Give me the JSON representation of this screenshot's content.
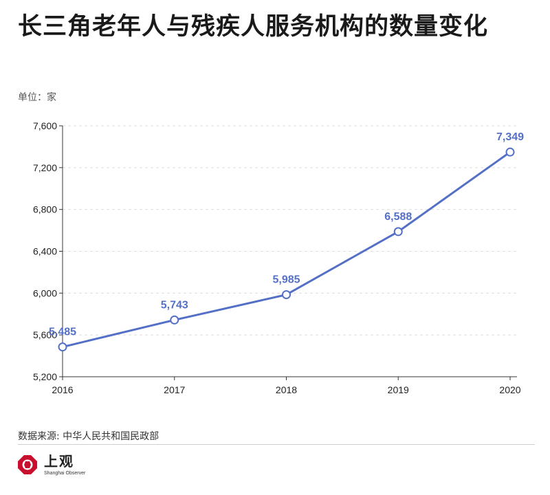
{
  "title": "长三角老年人与残疾人服务机构的数量变化",
  "unit_label": "单位：家",
  "source": "数据来源: 中华人民共和国民政部",
  "brand": {
    "name": "上观",
    "subtitle": "Shanghai Observer"
  },
  "colors": {
    "line": "#5470c6",
    "logo": "#c8102e"
  },
  "chart_data": {
    "type": "line",
    "x": [
      "2016",
      "2017",
      "2018",
      "2019",
      "2020"
    ],
    "series": [
      {
        "values": [
          5485,
          5743,
          5985,
          6588,
          7349
        ],
        "labels": [
          "5,485",
          "5,743",
          "5,985",
          "6,588",
          "7,349"
        ]
      }
    ],
    "ylim": [
      5200,
      7600
    ],
    "yticks": [
      5200,
      5600,
      6000,
      6400,
      6800,
      7200,
      7600
    ],
    "ytick_labels": [
      "5,200",
      "5,600",
      "6,000",
      "6,400",
      "6,800",
      "7,200",
      "7,600"
    ],
    "grid": true,
    "xlabel": "",
    "ylabel": ""
  }
}
